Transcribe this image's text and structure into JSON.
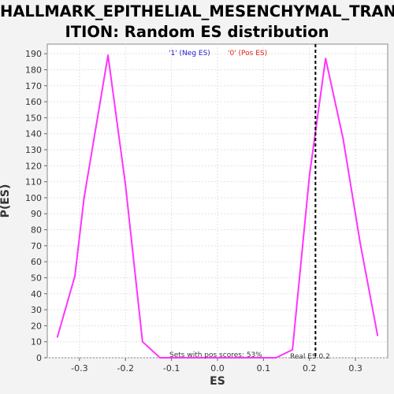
{
  "chart_data": {
    "type": "line",
    "title_line1": "HALLMARK_EPITHELIAL_MESENCHYMAL_TRANS",
    "title_line2": "ITION: Random ES distribution",
    "xlabel": "ES",
    "ylabel": "P(ES)",
    "xlim": [
      -0.37,
      0.37
    ],
    "ylim": [
      0,
      196
    ],
    "xticks": [
      -0.3,
      -0.2,
      -0.1,
      0.0,
      0.1,
      0.2,
      0.3
    ],
    "yticks": [
      0,
      10,
      20,
      30,
      40,
      50,
      60,
      70,
      80,
      90,
      100,
      110,
      120,
      130,
      140,
      150,
      160,
      170,
      180,
      190
    ],
    "grid": true,
    "line_color": "#ff33ff",
    "legend": [
      {
        "label": "'1' (Neg ES)",
        "color": "#2020d0"
      },
      {
        "label": "'0' (Pos ES)",
        "color": "#e02020"
      }
    ],
    "series": [
      {
        "x": [
          -0.348,
          -0.31,
          -0.29,
          -0.238,
          -0.2,
          -0.163,
          -0.125,
          -0.09,
          0.0,
          0.09,
          0.127,
          0.163,
          0.2,
          0.235,
          0.273,
          0.31,
          0.348
        ],
        "y": [
          13,
          51,
          100,
          189,
          108,
          10,
          0,
          0,
          0,
          0,
          0,
          5,
          114,
          187,
          137,
          72,
          14
        ]
      }
    ],
    "real_es": 0.213,
    "annotation_pos_scores": "Sets with pos scores: 53%",
    "annotation_real_es": "Real ES 0.2"
  }
}
